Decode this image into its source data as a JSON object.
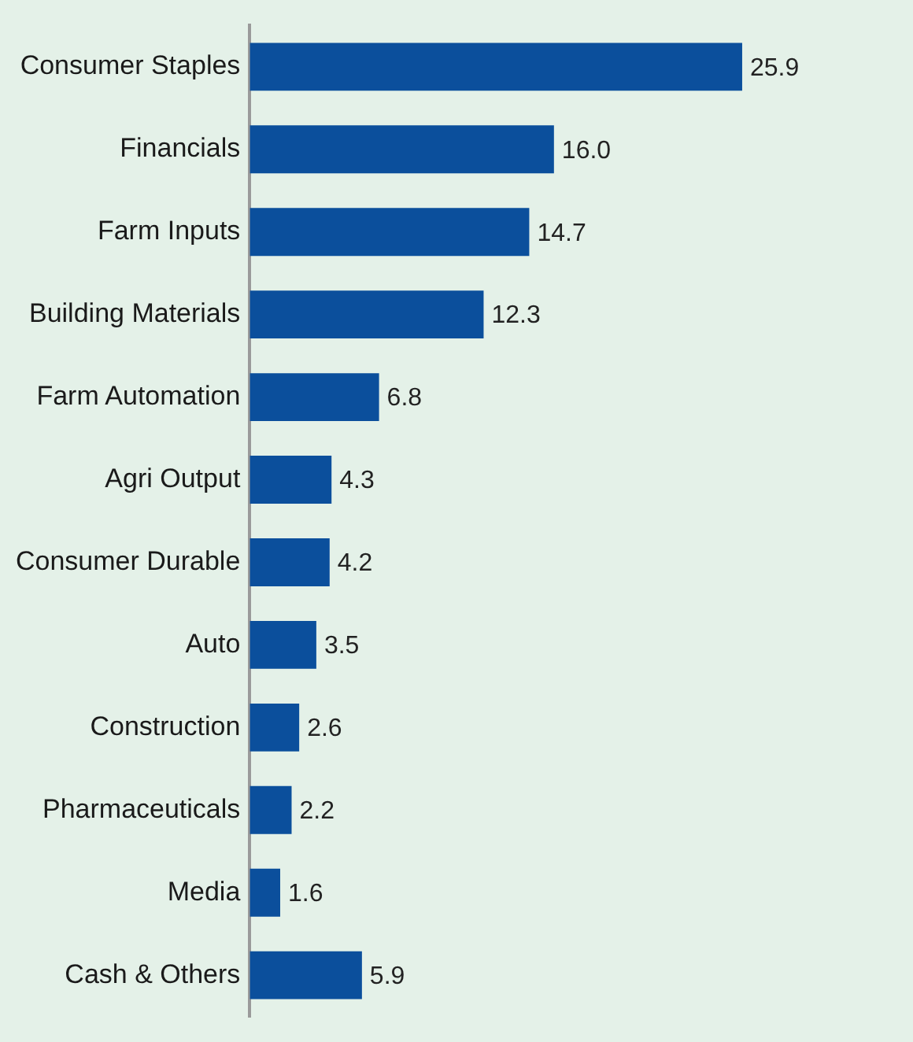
{
  "chart_data": {
    "type": "bar",
    "orientation": "horizontal",
    "categories": [
      "Consumer Staples",
      "Financials",
      "Farm Inputs",
      "Building Materials",
      "Farm Automation",
      "Agri Output",
      "Consumer Durable",
      "Auto",
      "Construction",
      "Pharmaceuticals",
      "Media",
      "Cash & Others"
    ],
    "values": [
      25.9,
      16.0,
      14.7,
      12.3,
      6.8,
      4.3,
      4.2,
      3.5,
      2.6,
      2.2,
      1.6,
      5.9
    ],
    "value_labels": [
      "25.9",
      "16.0",
      "14.7",
      "12.3",
      "6.8",
      "4.3",
      "4.2",
      "3.5",
      "2.6",
      "2.2",
      "1.6",
      "5.9"
    ],
    "color": "#0b4f9c",
    "legend": false,
    "tick_labels": "y"
  }
}
